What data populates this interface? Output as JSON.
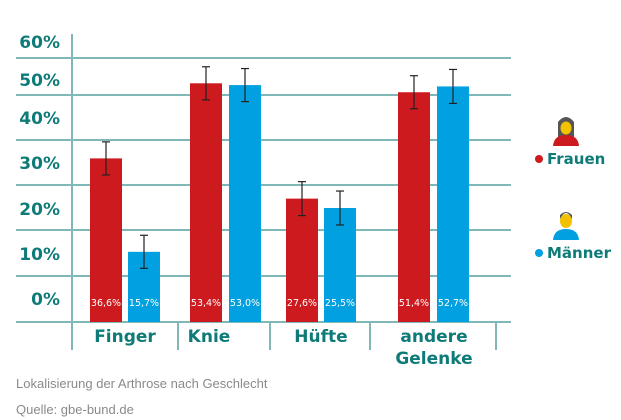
{
  "chart_data": {
    "type": "bar",
    "title": "Lokalisierung der Arthrose nach Geschlecht",
    "source": "Quelle: gbe-bund.de",
    "xlabel": "",
    "ylabel": "",
    "ylim": [
      0,
      60
    ],
    "y_ticks": [
      "60%",
      "50%",
      "40%",
      "30%",
      "20%",
      "10%",
      "0%"
    ],
    "categories": [
      "Finger",
      "Knie",
      "Hüfte",
      "andere Gelenke"
    ],
    "category_lines": [
      [
        "Finger"
      ],
      [
        "Knie"
      ],
      [
        "Hüfte"
      ],
      [
        "andere",
        "Gelenke"
      ]
    ],
    "series": [
      {
        "name": "Frauen",
        "color": "#cc1a1e",
        "values": [
          36.6,
          53.4,
          27.6,
          51.4
        ],
        "labels": [
          "36,6%",
          "53,4%",
          "27,6%",
          "51,4%"
        ],
        "error": [
          3.7,
          3.7,
          3.8,
          3.7
        ]
      },
      {
        "name": "Männer",
        "color": "#00a0e1",
        "values": [
          15.7,
          53.0,
          25.5,
          52.7
        ],
        "labels": [
          "15,7%",
          "53,0%",
          "25,5%",
          "52,7%"
        ],
        "error": [
          3.7,
          3.7,
          3.8,
          3.8
        ]
      }
    ],
    "grid": true,
    "legend": "right"
  }
}
